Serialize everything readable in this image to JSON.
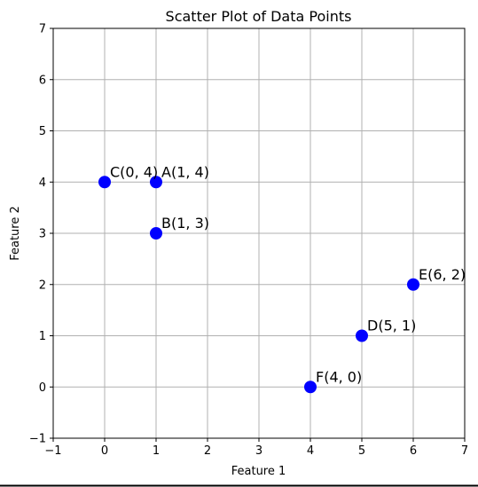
{
  "chart_data": {
    "type": "scatter",
    "title": "Scatter Plot of Data Points",
    "xlabel": "Feature 1",
    "ylabel": "Feature 2",
    "xlim": [
      -1,
      7
    ],
    "ylim": [
      -1,
      7
    ],
    "xticks": [
      -1,
      0,
      1,
      2,
      3,
      4,
      5,
      6,
      7
    ],
    "yticks": [
      -1,
      0,
      1,
      2,
      3,
      4,
      5,
      6,
      7
    ],
    "grid": true,
    "point_color": "#0000ff",
    "points": [
      {
        "label": "A(1, 4)",
        "x": 1,
        "y": 4
      },
      {
        "label": "B(1, 3)",
        "x": 1,
        "y": 3
      },
      {
        "label": "C(0, 4)",
        "x": 0,
        "y": 4
      },
      {
        "label": "D(5, 1)",
        "x": 5,
        "y": 1
      },
      {
        "label": "E(6, 2)",
        "x": 6,
        "y": 2
      },
      {
        "label": "F(4, 0)",
        "x": 4,
        "y": 0
      }
    ]
  }
}
